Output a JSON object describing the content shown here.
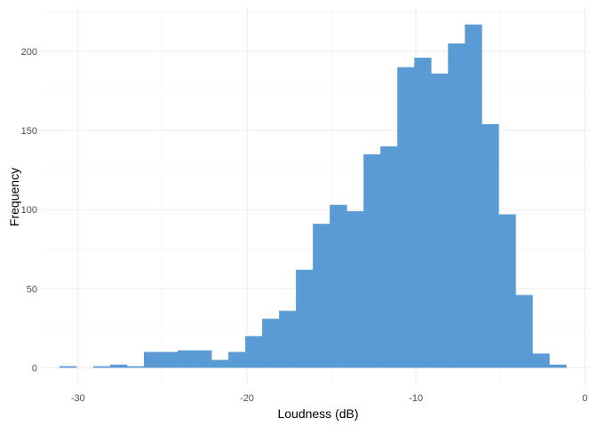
{
  "chart_data": {
    "type": "bar",
    "title": "",
    "xlabel": "Loudness (dB)",
    "ylabel": "Frequency",
    "xlim": [
      -32.2,
      0.3
    ],
    "ylim": [
      -11,
      228
    ],
    "x_ticks": [
      -30,
      -20,
      -10,
      0
    ],
    "x_tick_labels": [
      "-30",
      "-20",
      "-10",
      "0"
    ],
    "y_ticks": [
      0,
      50,
      100,
      150,
      200
    ],
    "y_tick_labels": [
      "0",
      "50",
      "100",
      "150",
      "200"
    ],
    "grid": true,
    "legend": "none",
    "bar_color": "#5b9bd5",
    "bins": [
      {
        "x0": -31.1,
        "x1": -30.1,
        "count": 1
      },
      {
        "x0": -30.1,
        "x1": -29.1,
        "count": 0
      },
      {
        "x0": -29.1,
        "x1": -28.1,
        "count": 1
      },
      {
        "x0": -28.1,
        "x1": -27.1,
        "count": 2
      },
      {
        "x0": -27.1,
        "x1": -26.1,
        "count": 1
      },
      {
        "x0": -26.1,
        "x1": -25.1,
        "count": 10
      },
      {
        "x0": -25.1,
        "x1": -24.1,
        "count": 10
      },
      {
        "x0": -24.1,
        "x1": -23.1,
        "count": 11
      },
      {
        "x0": -23.1,
        "x1": -22.1,
        "count": 11
      },
      {
        "x0": -22.1,
        "x1": -21.1,
        "count": 5
      },
      {
        "x0": -21.1,
        "x1": -20.1,
        "count": 10
      },
      {
        "x0": -20.1,
        "x1": -19.1,
        "count": 20
      },
      {
        "x0": -19.1,
        "x1": -18.1,
        "count": 31
      },
      {
        "x0": -18.1,
        "x1": -17.1,
        "count": 36
      },
      {
        "x0": -17.1,
        "x1": -16.1,
        "count": 62
      },
      {
        "x0": -16.1,
        "x1": -15.1,
        "count": 91
      },
      {
        "x0": -15.1,
        "x1": -14.1,
        "count": 103
      },
      {
        "x0": -14.1,
        "x1": -13.1,
        "count": 99
      },
      {
        "x0": -13.1,
        "x1": -12.1,
        "count": 135
      },
      {
        "x0": -12.1,
        "x1": -11.1,
        "count": 140
      },
      {
        "x0": -11.1,
        "x1": -10.1,
        "count": 190
      },
      {
        "x0": -10.1,
        "x1": -9.1,
        "count": 196
      },
      {
        "x0": -9.1,
        "x1": -8.1,
        "count": 186
      },
      {
        "x0": -8.1,
        "x1": -7.1,
        "count": 205
      },
      {
        "x0": -7.1,
        "x1": -6.1,
        "count": 217
      },
      {
        "x0": -6.1,
        "x1": -5.1,
        "count": 154
      },
      {
        "x0": -5.1,
        "x1": -4.1,
        "count": 97
      },
      {
        "x0": -4.1,
        "x1": -3.1,
        "count": 46
      },
      {
        "x0": -3.1,
        "x1": -2.1,
        "count": 9
      },
      {
        "x0": -2.1,
        "x1": -1.1,
        "count": 2
      }
    ]
  }
}
